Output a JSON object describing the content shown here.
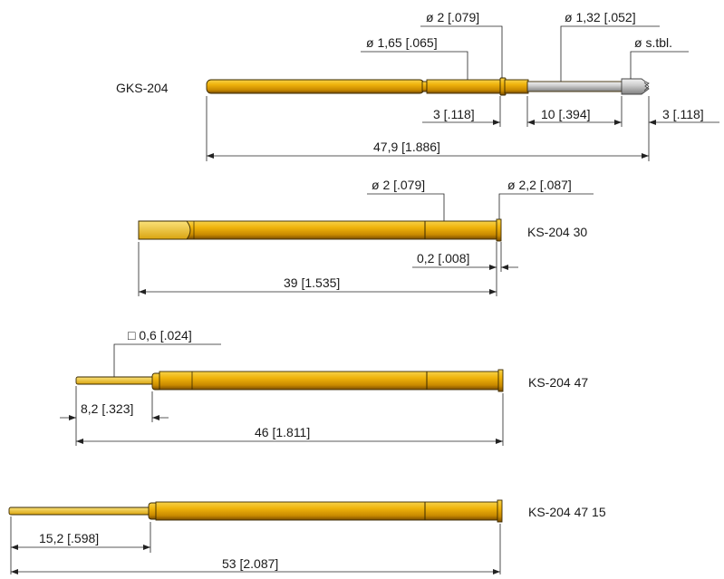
{
  "colors": {
    "gold_top": "#f4c21c",
    "gold_mid": "#e0a406",
    "gold_bottom": "#8a5a00",
    "steel_top": "#e4e4e4",
    "steel_bottom": "#8f8f8f",
    "line": "#222222"
  },
  "parts": [
    {
      "name": "GKS-204",
      "dims": {
        "d_main": "ø 1,65 [.065]",
        "d_collar": "ø 2 [.079]",
        "d_plunger": "ø 1,32 [.052]",
        "d_tip": "ø s.tbl.",
        "len_collar": "3 [.118]",
        "len_plunger": "10 [.394]",
        "len_tip": "3 [.118]",
        "len_total": "47,9 [1.886]"
      }
    },
    {
      "name": "KS-204 30",
      "dims": {
        "d_body": "ø 2 [.079]",
        "d_flange": "ø 2,2 [.087]",
        "len_flange": "0,2 [.008]",
        "len_total": "39 [1.535]"
      }
    },
    {
      "name": "KS-204 47",
      "dims": {
        "sq_pin": "□ 0,6 [.024]",
        "len_pin": "8,2 [.323]",
        "len_total": "46 [1.811]"
      }
    },
    {
      "name": "KS-204 47 15",
      "dims": {
        "len_pin": "15,2 [.598]",
        "len_total": "53 [2.087]"
      }
    }
  ]
}
